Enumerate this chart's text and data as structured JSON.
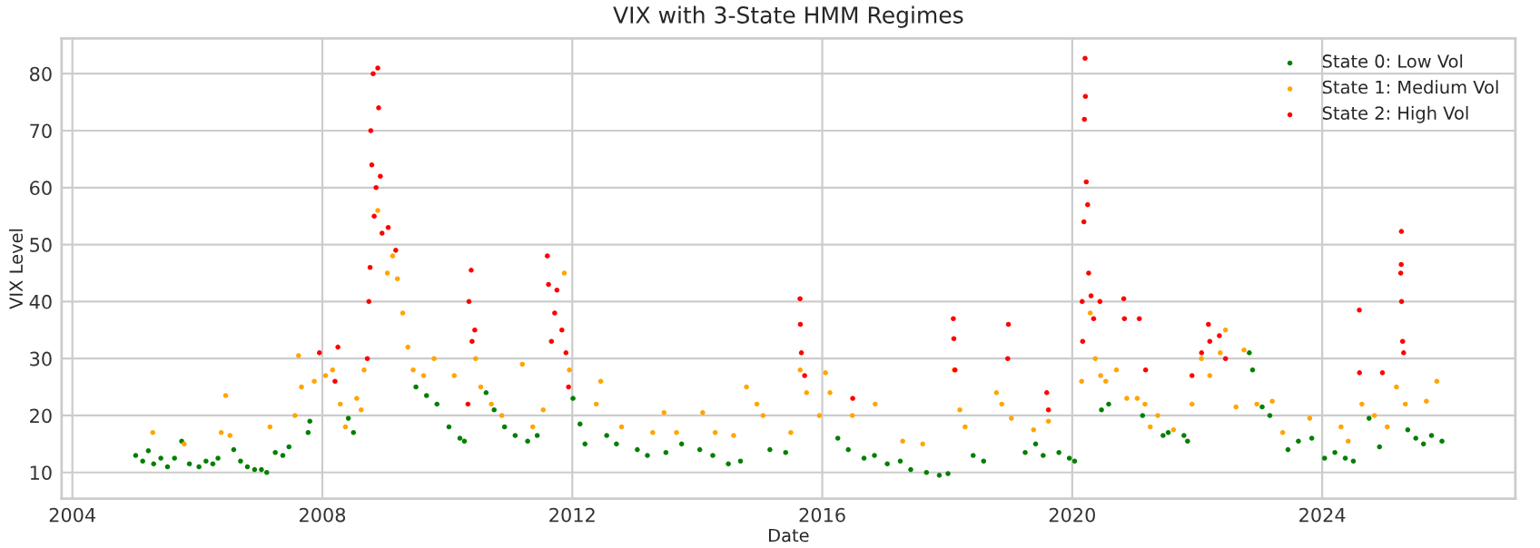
{
  "chart_data": {
    "type": "scatter",
    "title": "VIX with 3-State HMM Regimes",
    "xlabel": "Date",
    "ylabel": "VIX Level",
    "xlim": [
      "2003-10-30",
      "2027-02-03"
    ],
    "ylim": [
      5.4,
      86.2
    ],
    "xticks": [
      {
        "value": "2004-01-01",
        "label": "2004"
      },
      {
        "value": "2008-01-01",
        "label": "2008"
      },
      {
        "value": "2012-01-01",
        "label": "2012"
      },
      {
        "value": "2016-01-01",
        "label": "2016"
      },
      {
        "value": "2020-01-01",
        "label": "2020"
      },
      {
        "value": "2024-01-01",
        "label": "2024"
      }
    ],
    "yticks": [
      10,
      20,
      30,
      40,
      50,
      60,
      70,
      80
    ],
    "grid": true,
    "legend": "top right",
    "marker": "circle",
    "series": [
      {
        "name": "State 0: Low Vol",
        "color": "#008000",
        "x": [
          "2005-01-05",
          "2005-02-15",
          "2005-03-20",
          "2005-04-20",
          "2005-06-01",
          "2005-07-10",
          "2005-08-20",
          "2005-10-01",
          "2005-11-15",
          "2006-01-10",
          "2006-02-20",
          "2006-04-01",
          "2006-05-01",
          "2006-08-01",
          "2006-09-10",
          "2006-10-20",
          "2006-12-01",
          "2007-01-10",
          "2007-02-10",
          "2007-04-01",
          "2007-05-15",
          "2007-06-20",
          "2007-10-10",
          "2007-10-20",
          "2008-06-01",
          "2008-07-01",
          "2009-07-01",
          "2009-09-01",
          "2009-11-01",
          "2010-01-10",
          "2010-03-15",
          "2010-04-10",
          "2010-08-15",
          "2010-10-01",
          "2010-12-01",
          "2011-02-01",
          "2011-04-15",
          "2011-06-10",
          "2012-01-05",
          "2012-02-15",
          "2012-03-15",
          "2012-07-20",
          "2012-09-15",
          "2013-01-15",
          "2013-03-15",
          "2013-07-01",
          "2013-10-01",
          "2014-01-15",
          "2014-04-01",
          "2014-07-01",
          "2014-09-10",
          "2015-03-01",
          "2015-06-01",
          "2016-04-01",
          "2016-06-01",
          "2016-09-01",
          "2016-11-01",
          "2017-01-15",
          "2017-04-01",
          "2017-06-01",
          "2017-09-01",
          "2017-11-15",
          "2018-01-05",
          "2018-06-01",
          "2018-08-01",
          "2019-04-01",
          "2019-06-01",
          "2019-07-15",
          "2019-10-15",
          "2019-12-15",
          "2020-01-15",
          "2020-06-20",
          "2020-08-01",
          "2021-02-15",
          "2021-06-15",
          "2021-07-15",
          "2021-10-15",
          "2021-11-05",
          "2022-11-01",
          "2022-11-20",
          "2023-01-15",
          "2023-03-01",
          "2023-06-15",
          "2023-08-15",
          "2023-11-01",
          "2024-01-15",
          "2024-03-15",
          "2024-05-15",
          "2024-07-01",
          "2024-10-01",
          "2024-12-01",
          "2025-05-15",
          "2025-07-01",
          "2025-08-15",
          "2025-10-01",
          "2025-12-01"
        ],
        "values": [
          13.0,
          12.0,
          13.8,
          11.5,
          12.5,
          11.0,
          12.5,
          15.5,
          11.5,
          11.0,
          12.0,
          11.5,
          12.5,
          14.0,
          12.0,
          11.0,
          10.5,
          10.5,
          10.0,
          13.5,
          13.0,
          14.5,
          17.0,
          19.0,
          19.5,
          17.0,
          25.0,
          23.5,
          22.0,
          18.0,
          16.0,
          15.5,
          24.0,
          21.0,
          18.0,
          16.5,
          15.5,
          16.5,
          23.0,
          18.5,
          15.0,
          16.5,
          15.0,
          14.0,
          13.0,
          13.5,
          15.0,
          14.0,
          13.0,
          11.5,
          12.0,
          14.0,
          13.5,
          16.0,
          14.0,
          12.5,
          13.0,
          11.5,
          12.0,
          10.5,
          10.0,
          9.5,
          9.8,
          13.0,
          12.0,
          13.5,
          15.0,
          13.0,
          13.5,
          12.5,
          12.0,
          21.0,
          22.0,
          20.0,
          16.5,
          17.0,
          16.5,
          15.5,
          31.0,
          28.0,
          21.5,
          20.0,
          14.0,
          15.5,
          16.0,
          12.5,
          13.5,
          12.5,
          12.0,
          19.5,
          14.5,
          17.5,
          16.0,
          15.0,
          16.5,
          15.5
        ]
      },
      {
        "name": "State 1: Medium Vol",
        "color": "#ffa500",
        "x": [
          "2005-04-15",
          "2005-10-15",
          "2006-05-20",
          "2006-06-15",
          "2006-07-10",
          "2007-03-01",
          "2007-07-25",
          "2007-08-15",
          "2007-09-01",
          "2007-11-15",
          "2008-01-20",
          "2008-03-01",
          "2008-04-15",
          "2008-05-15",
          "2008-07-20",
          "2008-08-15",
          "2008-09-01",
          "2008-11-20",
          "2009-01-15",
          "2009-02-15",
          "2009-03-15",
          "2009-04-15",
          "2009-05-15",
          "2009-06-15",
          "2009-08-15",
          "2009-10-15",
          "2010-02-10",
          "2010-06-15",
          "2010-07-15",
          "2010-09-15",
          "2010-11-15",
          "2011-03-15",
          "2011-05-15",
          "2011-07-15",
          "2011-11-15",
          "2011-12-15",
          "2012-05-20",
          "2012-06-15",
          "2012-10-15",
          "2013-04-15",
          "2013-06-20",
          "2013-09-01",
          "2014-02-01",
          "2014-04-15",
          "2014-08-01",
          "2014-10-15",
          "2014-12-15",
          "2015-01-20",
          "2015-07-01",
          "2015-08-25",
          "2015-10-01",
          "2015-12-15",
          "2016-01-20",
          "2016-02-15",
          "2016-06-25",
          "2016-11-05",
          "2017-04-15",
          "2017-08-10",
          "2018-02-10",
          "2018-03-15",
          "2018-04-15",
          "2018-10-15",
          "2018-11-15",
          "2019-01-10",
          "2019-05-20",
          "2019-08-15",
          "2020-02-25",
          "2020-04-15",
          "2020-05-15",
          "2020-06-15",
          "2020-07-15",
          "2020-09-15",
          "2020-11-15",
          "2021-01-15",
          "2021-03-01",
          "2021-04-01",
          "2021-05-15",
          "2021-08-15",
          "2021-12-01",
          "2022-01-25",
          "2022-03-15",
          "2022-05-15",
          "2022-06-15",
          "2022-08-15",
          "2022-10-01",
          "2022-12-15",
          "2023-03-15",
          "2023-05-15",
          "2023-10-20",
          "2024-04-20",
          "2024-06-01",
          "2024-08-20",
          "2024-11-01",
          "2025-01-15",
          "2025-03-10",
          "2025-05-01",
          "2025-09-01",
          "2025-11-01"
        ],
        "values": [
          17.0,
          15.0,
          17.0,
          23.5,
          16.5,
          18.0,
          20.0,
          30.5,
          25.0,
          26.0,
          27.0,
          28.0,
          22.0,
          18.0,
          23.0,
          21.0,
          28.0,
          56.0,
          45.0,
          48.0,
          44.0,
          38.0,
          32.0,
          28.0,
          27.0,
          30.0,
          27.0,
          30.0,
          25.0,
          22.0,
          20.0,
          29.0,
          18.0,
          21.0,
          45.0,
          28.0,
          22.0,
          26.0,
          18.0,
          17.0,
          20.5,
          17.0,
          20.5,
          17.0,
          16.5,
          25.0,
          22.0,
          20.0,
          17.0,
          28.0,
          24.0,
          20.0,
          27.5,
          24.0,
          20.0,
          22.0,
          15.5,
          15.0,
          28.0,
          21.0,
          18.0,
          24.0,
          22.0,
          19.5,
          17.5,
          19.0,
          26.0,
          38.0,
          30.0,
          27.0,
          26.0,
          28.0,
          23.0,
          23.0,
          22.0,
          18.0,
          20.0,
          17.5,
          22.0,
          30.0,
          27.0,
          31.0,
          35.0,
          21.5,
          31.5,
          22.0,
          22.5,
          17.0,
          19.5,
          18.0,
          15.5,
          22.0,
          20.0,
          18.0,
          25.0,
          22.0,
          22.5,
          26.0
        ]
      },
      {
        "name": "State 2: High Vol",
        "color": "#ff0000",
        "x": [
          "2007-12-15",
          "2008-03-15",
          "2008-04-01",
          "2008-09-20",
          "2008-09-29",
          "2008-10-06",
          "2008-10-10",
          "2008-10-16",
          "2008-10-24",
          "2008-10-30",
          "2008-11-10",
          "2008-11-20",
          "2008-11-25",
          "2008-12-05",
          "2008-12-15",
          "2009-01-20",
          "2009-03-05",
          "2010-05-01",
          "2010-05-07",
          "2010-05-20",
          "2010-05-25",
          "2010-06-10",
          "2011-08-08",
          "2011-08-15",
          "2011-09-01",
          "2011-09-20",
          "2011-10-03",
          "2011-11-01",
          "2011-11-25",
          "2011-12-10",
          "2015-08-24",
          "2015-08-26",
          "2015-09-01",
          "2015-09-20",
          "2016-06-27",
          "2018-02-05",
          "2018-02-08",
          "2018-02-15",
          "2018-12-20",
          "2018-12-24",
          "2019-08-05",
          "2019-08-15",
          "2020-02-28",
          "2020-03-02",
          "2020-03-09",
          "2020-03-12",
          "2020-03-16",
          "2020-03-18",
          "2020-03-23",
          "2020-03-31",
          "2020-04-06",
          "2020-04-20",
          "2020-05-05",
          "2020-06-11",
          "2020-10-28",
          "2020-11-01",
          "2021-01-27",
          "2021-03-05",
          "2021-12-01",
          "2022-01-26",
          "2022-03-07",
          "2022-03-15",
          "2022-05-10",
          "2022-06-15",
          "2024-08-05",
          "2024-08-06",
          "2024-12-18",
          "2025-04-04",
          "2025-04-07",
          "2025-04-08",
          "2025-04-09",
          "2025-04-15",
          "2025-04-21"
        ],
        "values": [
          31.0,
          26.0,
          32.0,
          30.0,
          40.0,
          46.0,
          70.0,
          64.0,
          80.0,
          55.0,
          60.0,
          81.0,
          74.0,
          62.0,
          52.0,
          53.0,
          49.0,
          22.0,
          40.0,
          45.5,
          33.0,
          35.0,
          48.0,
          43.0,
          33.0,
          38.0,
          42.0,
          35.0,
          31.0,
          25.0,
          40.5,
          36.0,
          31.0,
          27.0,
          23.0,
          37.0,
          33.5,
          28.0,
          30.0,
          36.0,
          24.0,
          21.0,
          40.0,
          33.0,
          54.0,
          72.0,
          82.7,
          76.0,
          61.0,
          57.0,
          45.0,
          41.0,
          37.0,
          40.0,
          40.5,
          37.0,
          37.0,
          28.0,
          27.0,
          31.0,
          36.0,
          33.0,
          34.0,
          30.0,
          38.5,
          27.5,
          27.5,
          45.0,
          46.5,
          52.3,
          40.0,
          33.0,
          31.0
        ]
      }
    ]
  }
}
